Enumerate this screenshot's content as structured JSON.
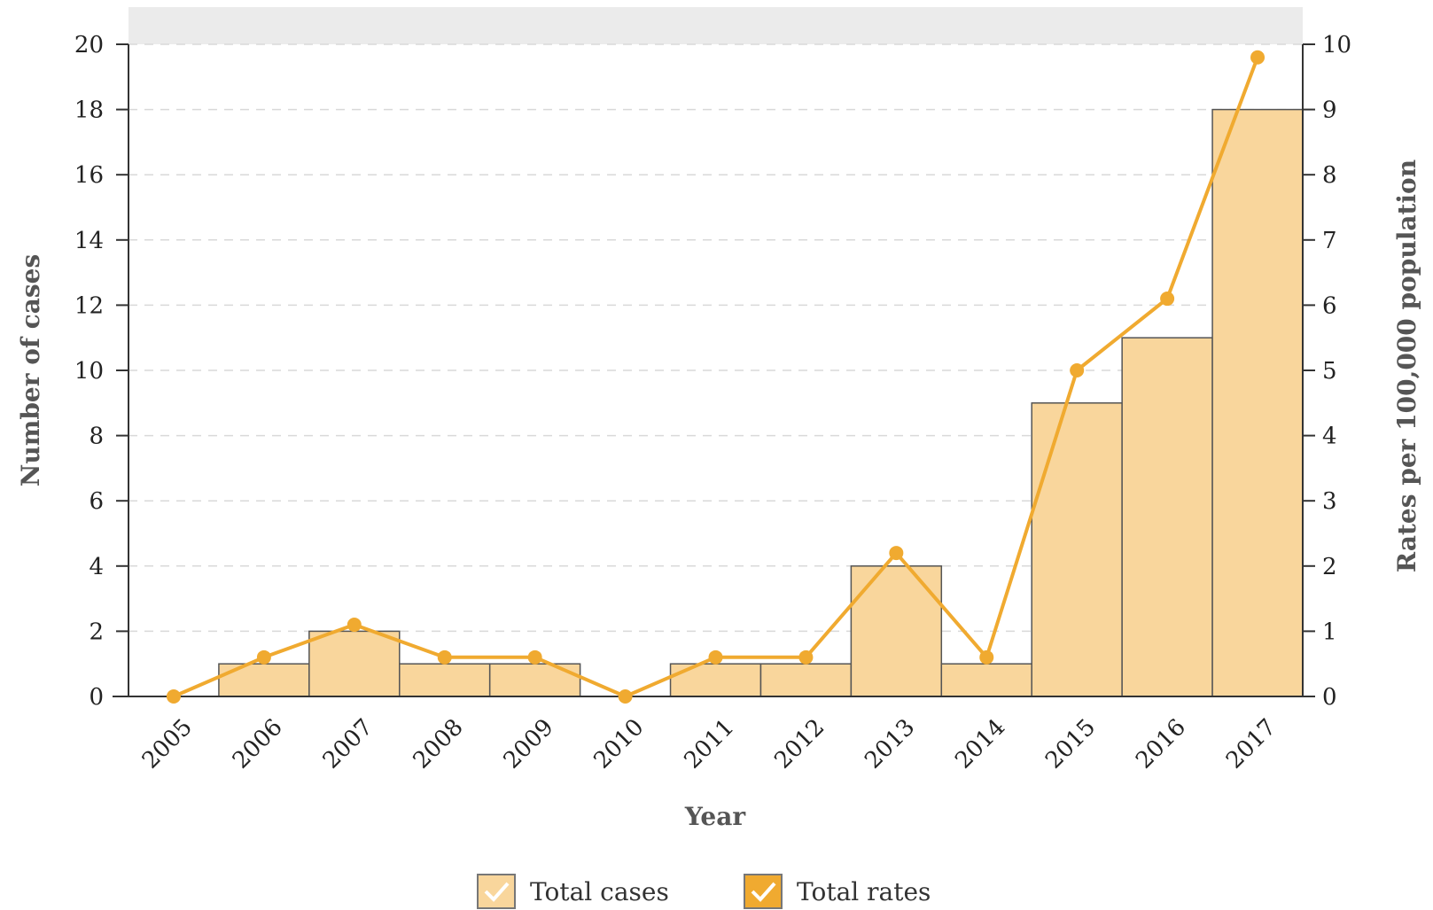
{
  "colors": {
    "bar_fill": "#f9d69c",
    "bar_stroke": "#555555",
    "line": "#f0aa30",
    "marker": "#f0aa30",
    "band": "#ebebeb",
    "legend_cases": "#f9d69c",
    "legend_rates": "#f0aa30"
  },
  "chart_data": {
    "type": "bar",
    "categories": [
      "2005",
      "2006",
      "2007",
      "2008",
      "2009",
      "2010",
      "2011",
      "2012",
      "2013",
      "2014",
      "2015",
      "2016",
      "2017"
    ],
    "series": [
      {
        "name": "Total cases",
        "type": "bar",
        "axis": "left",
        "values": [
          0,
          1,
          2,
          1,
          1,
          0,
          1,
          1,
          4,
          1,
          9,
          11,
          18
        ]
      },
      {
        "name": "Total rates",
        "type": "line",
        "axis": "right",
        "values": [
          0,
          0.6,
          1.1,
          0.6,
          0.6,
          0,
          0.6,
          0.6,
          2.2,
          0.6,
          5.0,
          6.1,
          9.8
        ]
      }
    ],
    "xlabel": "Year",
    "ylabel": "Number of cases",
    "y2label": "Rates per 100,000 population",
    "ylim": [
      0,
      20
    ],
    "y2lim": [
      0,
      10
    ],
    "yticks": [
      "0",
      "2",
      "4",
      "6",
      "8",
      "10",
      "12",
      "14",
      "16",
      "18",
      "20"
    ],
    "y2ticks": [
      "0",
      "1",
      "2",
      "3",
      "4",
      "5",
      "6",
      "7",
      "8",
      "9",
      "10"
    ],
    "grid": true,
    "legend": {
      "position": "bottom-center",
      "items": [
        "Total cases",
        "Total rates"
      ]
    }
  }
}
